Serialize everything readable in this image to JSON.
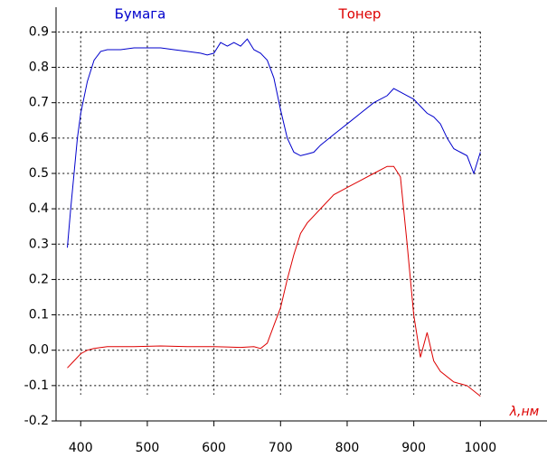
{
  "chart_data": {
    "type": "line",
    "xlabel": "λ,нм",
    "xlim": [
      363,
      1100
    ],
    "ylim": [
      -0.2,
      0.97
    ],
    "xticks": [
      400,
      500,
      600,
      700,
      800,
      900,
      1000
    ],
    "yticks": [
      -0.2,
      -0.1,
      {
        "value": 0,
        "label": "0.0"
      },
      0.1,
      0.2,
      0.3,
      0.4,
      0.5,
      0.6,
      0.7,
      0.8,
      0.9
    ],
    "grid": true,
    "series": [
      {
        "name": "Бумага",
        "color": "#0000cc",
        "x": [
          380,
          385,
          390,
          395,
          400,
          410,
          420,
          430,
          440,
          460,
          480,
          500,
          520,
          540,
          560,
          580,
          590,
          600,
          610,
          620,
          630,
          640,
          650,
          660,
          670,
          680,
          690,
          700,
          710,
          720,
          730,
          740,
          750,
          760,
          780,
          800,
          820,
          840,
          860,
          870,
          880,
          890,
          900,
          910,
          920,
          930,
          940,
          950,
          960,
          970,
          980,
          990,
          1000
        ],
        "values": [
          0.29,
          0.4,
          0.5,
          0.6,
          0.67,
          0.76,
          0.82,
          0.845,
          0.85,
          0.85,
          0.855,
          0.855,
          0.855,
          0.85,
          0.845,
          0.84,
          0.835,
          0.84,
          0.87,
          0.86,
          0.87,
          0.86,
          0.88,
          0.85,
          0.84,
          0.82,
          0.77,
          0.68,
          0.6,
          0.56,
          0.55,
          0.555,
          0.56,
          0.58,
          0.61,
          0.64,
          0.67,
          0.7,
          0.72,
          0.74,
          0.73,
          0.72,
          0.71,
          0.69,
          0.67,
          0.66,
          0.64,
          0.6,
          0.57,
          0.56,
          0.55,
          0.5,
          0.56
        ]
      },
      {
        "name": "Тонер",
        "color": "#dd0000",
        "x": [
          380,
          390,
          400,
          410,
          420,
          440,
          480,
          520,
          560,
          600,
          640,
          660,
          670,
          680,
          690,
          700,
          710,
          720,
          730,
          740,
          760,
          780,
          800,
          820,
          840,
          860,
          870,
          880,
          890,
          900,
          910,
          920,
          930,
          940,
          960,
          980,
          1000
        ],
        "values": [
          -0.05,
          -0.03,
          -0.01,
          0,
          0.005,
          0.01,
          0.01,
          0.012,
          0.01,
          0.01,
          0.008,
          0.01,
          0.005,
          0.02,
          0.07,
          0.12,
          0.2,
          0.27,
          0.33,
          0.36,
          0.4,
          0.44,
          0.46,
          0.48,
          0.5,
          0.52,
          0.52,
          0.49,
          0.3,
          0.1,
          -0.02,
          0.05,
          -0.03,
          -0.06,
          -0.09,
          -0.1,
          -0.13
        ]
      }
    ]
  }
}
